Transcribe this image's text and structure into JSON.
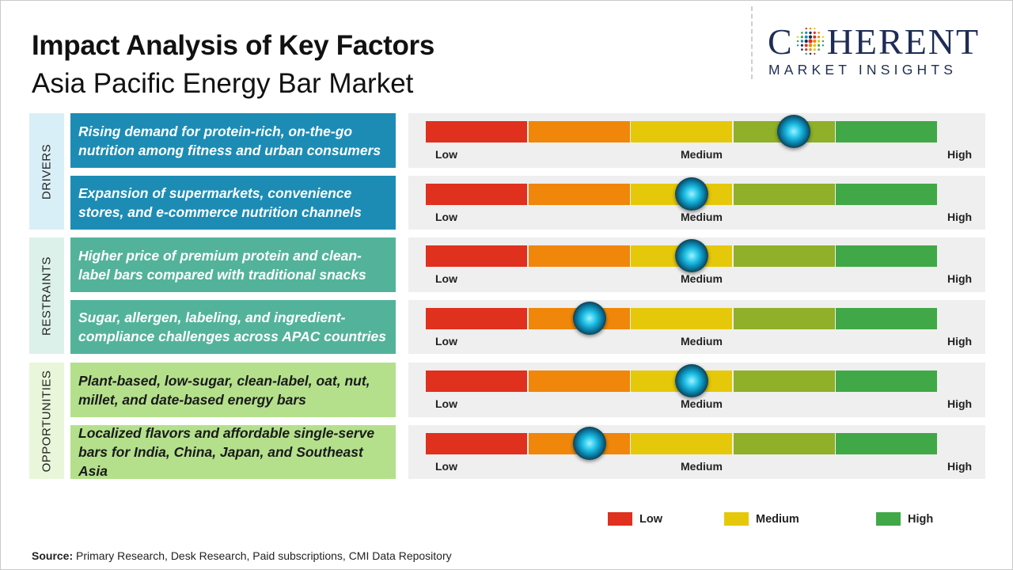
{
  "title": "Impact Analysis of Key Factors",
  "subtitle": "Asia Pacific Energy Bar Market",
  "logo": {
    "top_left": "C",
    "top_right": "HERENT",
    "bottom": "MARKET INSIGHTS"
  },
  "colors": {
    "red": "#e0301e",
    "orange": "#f0870a",
    "yellow": "#e6c80a",
    "olive": "#8fb028",
    "green": "#41a847",
    "drivers_bg": "#1c8cb5",
    "restraints_bg": "#53b39a",
    "opportunities_bg": "#b4e08c",
    "drivers_cat": "#d9eff7",
    "restraints_cat": "#dcf1ea",
    "opportunities_cat": "#e9f6da"
  },
  "scale_labels": {
    "low": "Low",
    "medium": "Medium",
    "high": "High"
  },
  "categories": [
    {
      "name": "DRIVERS"
    },
    {
      "name": "RESTRAINTS"
    },
    {
      "name": "OPPORTUNITIES"
    }
  ],
  "chart_data": {
    "type": "table",
    "scale": [
      "Low",
      "Medium",
      "High"
    ],
    "value_range": [
      0,
      5
    ],
    "factors": [
      {
        "category": "DRIVERS",
        "text": "Rising demand for protein-rich, on-the-go nutrition among fitness and urban consumers",
        "value": 3.6
      },
      {
        "category": "DRIVERS",
        "text": "Expansion of supermarkets, convenience stores, and e-commerce nutrition channels",
        "value": 2.6
      },
      {
        "category": "RESTRAINTS",
        "text": "Higher price of premium protein and clean-label bars compared with traditional snacks",
        "value": 2.6
      },
      {
        "category": "RESTRAINTS",
        "text": "Sugar, allergen, labeling, and ingredient-compliance challenges across APAC countries",
        "value": 1.6
      },
      {
        "category": "OPPORTUNITIES",
        "text": "Plant-based, low-sugar, clean-label, oat, nut, millet, and date-based energy bars",
        "value": 2.6
      },
      {
        "category": "OPPORTUNITIES",
        "text": "Localized flavors and affordable single-serve bars for India, China, Japan, and Southeast Asia",
        "value": 1.6
      }
    ]
  },
  "legend": [
    {
      "label": "Low",
      "color": "#e0301e"
    },
    {
      "label": "Medium",
      "color": "#e6c80a"
    },
    {
      "label": "High",
      "color": "#41a847"
    }
  ],
  "source": {
    "label": "Source:",
    "text": " Primary Research, Desk Research, Paid subscriptions, CMI Data Repository"
  }
}
